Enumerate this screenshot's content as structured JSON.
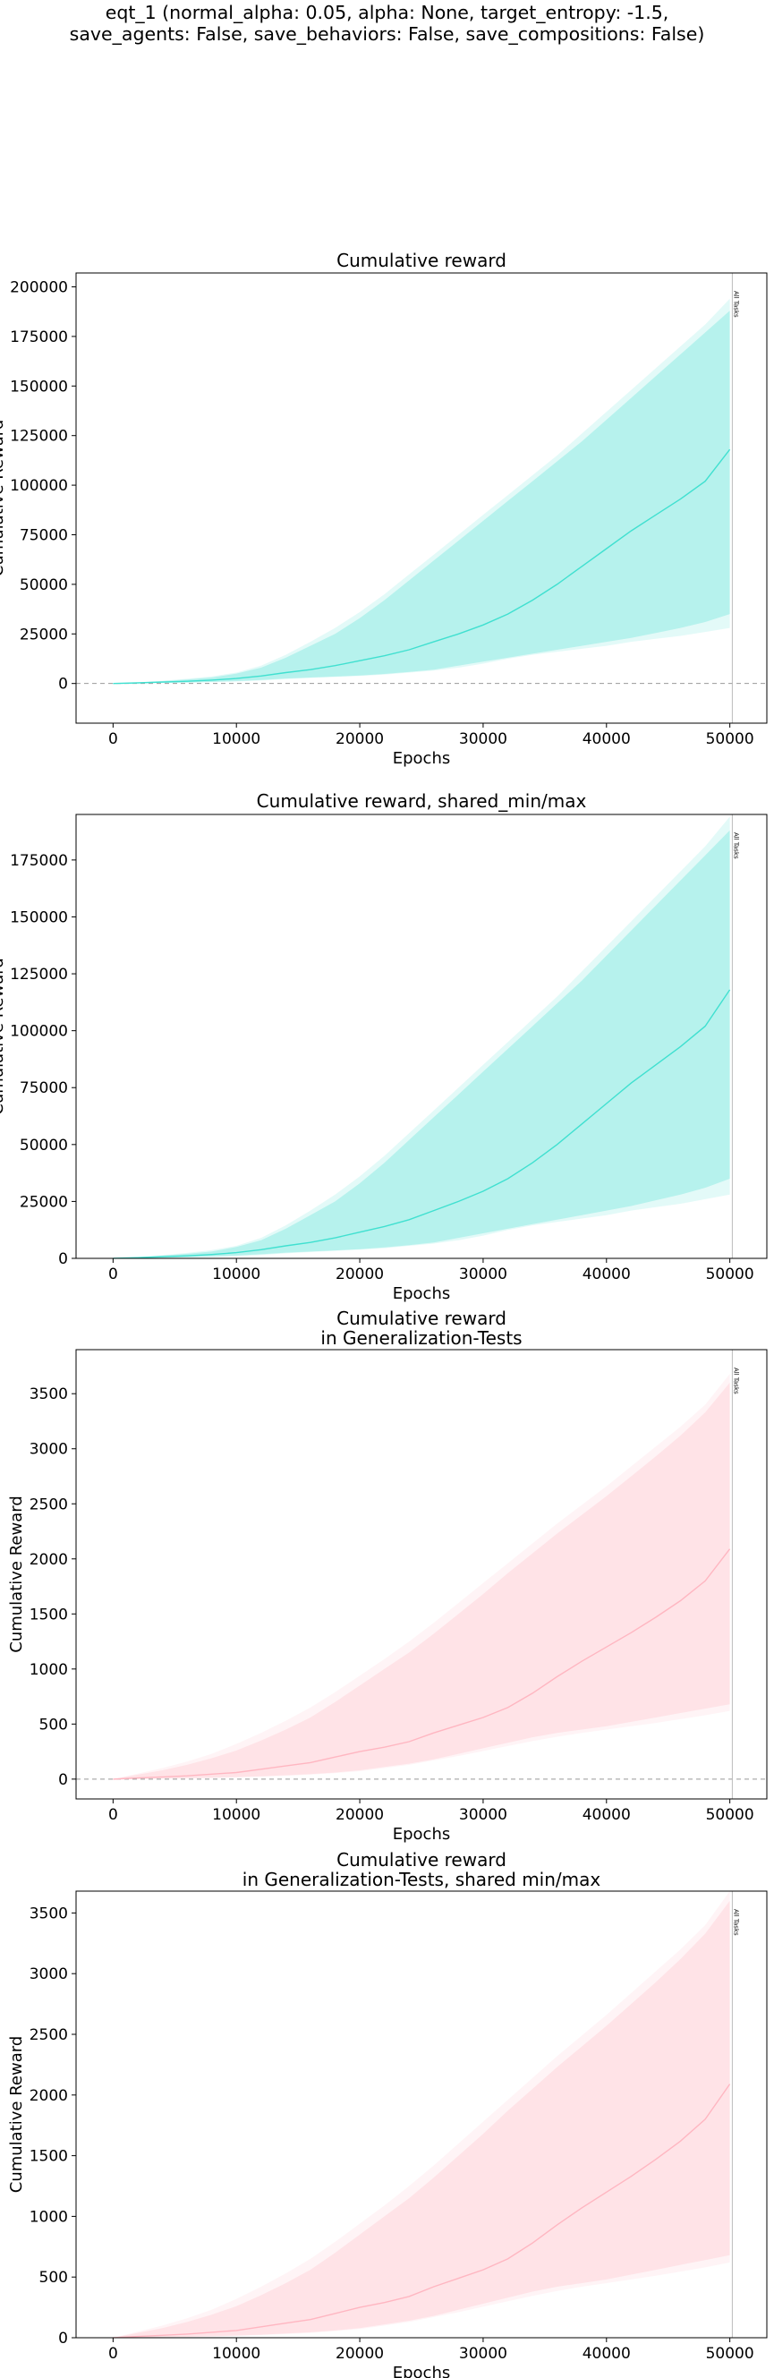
{
  "suptitle": {
    "line1": "eqt_1 (normal_alpha: 0.05, alpha: None, target_entropy: -1.5,",
    "line2": "save_agents: False, save_behaviors: False, save_compositions: False)"
  },
  "chart_data": [
    {
      "type": "area",
      "title_lines": [
        "Cumulative reward"
      ],
      "xlabel": "Epochs",
      "ylabel": "Cumulative Reward",
      "xlim": [
        -3000,
        53000
      ],
      "ylim": [
        -20000,
        207000
      ],
      "xticks": [
        0,
        10000,
        20000,
        30000,
        40000,
        50000
      ],
      "yticks": [
        0,
        25000,
        50000,
        75000,
        100000,
        125000,
        150000,
        175000,
        200000
      ],
      "zero_line": true,
      "color": "#40e0d0",
      "vline": {
        "x": 50200,
        "label": "All Tasks"
      },
      "x": [
        0,
        2000,
        4000,
        6000,
        8000,
        10000,
        12000,
        14000,
        16000,
        18000,
        20000,
        22000,
        24000,
        26000,
        28000,
        30000,
        32000,
        34000,
        36000,
        38000,
        40000,
        42000,
        44000,
        46000,
        48000,
        50000
      ],
      "mean": [
        0,
        300,
        700,
        1100,
        1700,
        2500,
        3800,
        5500,
        7000,
        9000,
        11500,
        14000,
        17000,
        21000,
        25000,
        29500,
        35000,
        42000,
        50000,
        59000,
        68000,
        77000,
        85000,
        93000,
        102000,
        118000
      ],
      "inner_lower": [
        0,
        100,
        300,
        500,
        800,
        1200,
        1800,
        2500,
        3000,
        3500,
        4000,
        4800,
        5800,
        7000,
        9000,
        11000,
        13000,
        15000,
        17000,
        19000,
        21000,
        23000,
        25500,
        28000,
        31000,
        35000
      ],
      "inner_upper": [
        0,
        500,
        1200,
        2000,
        3000,
        5000,
        8000,
        13000,
        19000,
        25000,
        33000,
        42000,
        52000,
        62000,
        72000,
        82000,
        92000,
        102000,
        112000,
        122000,
        133000,
        144000,
        155000,
        166000,
        177000,
        188000
      ],
      "outer_lower": [
        0,
        100,
        250,
        400,
        700,
        1000,
        1500,
        2200,
        2800,
        3300,
        3800,
        4500,
        5500,
        6500,
        8000,
        10000,
        12500,
        14500,
        16000,
        17500,
        19000,
        21000,
        22500,
        24000,
        26000,
        28000
      ],
      "outer_upper": [
        0,
        600,
        1400,
        2400,
        3600,
        5500,
        9000,
        14500,
        21000,
        28000,
        36000,
        45000,
        55000,
        65000,
        75000,
        85000,
        95000,
        105000,
        115000,
        126000,
        137000,
        148000,
        159000,
        170000,
        181000,
        194000
      ]
    },
    {
      "type": "area",
      "title_lines": [
        "Cumulative reward, shared_min/max"
      ],
      "xlabel": "Epochs",
      "ylabel": "Cumulative Reward",
      "xlim": [
        -3000,
        53000
      ],
      "ylim": [
        0,
        195000
      ],
      "xticks": [
        0,
        10000,
        20000,
        30000,
        40000,
        50000
      ],
      "yticks": [
        0,
        25000,
        50000,
        75000,
        100000,
        125000,
        150000,
        175000
      ],
      "zero_line": false,
      "color": "#40e0d0",
      "vline": {
        "x": 50200,
        "label": "All Tasks"
      },
      "x": [
        0,
        2000,
        4000,
        6000,
        8000,
        10000,
        12000,
        14000,
        16000,
        18000,
        20000,
        22000,
        24000,
        26000,
        28000,
        30000,
        32000,
        34000,
        36000,
        38000,
        40000,
        42000,
        44000,
        46000,
        48000,
        50000
      ],
      "mean": [
        0,
        300,
        700,
        1100,
        1700,
        2500,
        3800,
        5500,
        7000,
        9000,
        11500,
        14000,
        17000,
        21000,
        25000,
        29500,
        35000,
        42000,
        50000,
        59000,
        68000,
        77000,
        85000,
        93000,
        102000,
        118000
      ],
      "inner_lower": [
        0,
        100,
        300,
        500,
        800,
        1200,
        1800,
        2500,
        3000,
        3500,
        4000,
        4800,
        5800,
        7000,
        9000,
        11000,
        13000,
        15000,
        17000,
        19000,
        21000,
        23000,
        25500,
        28000,
        31000,
        35000
      ],
      "inner_upper": [
        0,
        500,
        1200,
        2000,
        3000,
        5000,
        8000,
        13000,
        19000,
        25000,
        33000,
        42000,
        52000,
        62000,
        72000,
        82000,
        92000,
        102000,
        112000,
        122000,
        133000,
        144000,
        155000,
        166000,
        177000,
        188000
      ],
      "outer_lower": [
        0,
        100,
        250,
        400,
        700,
        1000,
        1500,
        2200,
        2800,
        3300,
        3800,
        4500,
        5500,
        6500,
        8000,
        10000,
        12500,
        14500,
        16000,
        17500,
        19000,
        21000,
        22500,
        24000,
        26000,
        28000
      ],
      "outer_upper": [
        0,
        600,
        1400,
        2400,
        3600,
        5500,
        9000,
        14500,
        21000,
        28000,
        36000,
        45000,
        55000,
        65000,
        75000,
        85000,
        95000,
        105000,
        115000,
        126000,
        137000,
        148000,
        159000,
        170000,
        181000,
        194000
      ]
    },
    {
      "type": "area",
      "title_lines": [
        "Cumulative reward",
        "in Generalization-Tests"
      ],
      "xlabel": "Epochs",
      "ylabel": "Cumulative Reward",
      "xlim": [
        -3000,
        53000
      ],
      "ylim": [
        -180,
        3900
      ],
      "xticks": [
        0,
        10000,
        20000,
        30000,
        40000,
        50000
      ],
      "yticks": [
        0,
        500,
        1000,
        1500,
        2000,
        2500,
        3000,
        3500
      ],
      "zero_line": true,
      "color": "#ffb6c1",
      "vline": {
        "x": 50200,
        "label": "All Tasks"
      },
      "x": [
        0,
        2000,
        4000,
        6000,
        8000,
        10000,
        12000,
        14000,
        16000,
        18000,
        20000,
        22000,
        24000,
        26000,
        28000,
        30000,
        32000,
        34000,
        36000,
        38000,
        40000,
        42000,
        44000,
        46000,
        48000,
        50000
      ],
      "mean": [
        0,
        10,
        20,
        30,
        45,
        60,
        90,
        120,
        150,
        200,
        250,
        290,
        340,
        420,
        490,
        560,
        650,
        780,
        930,
        1070,
        1200,
        1330,
        1470,
        1620,
        1800,
        2090
      ],
      "inner_lower": [
        0,
        2,
        5,
        8,
        12,
        18,
        25,
        35,
        45,
        60,
        80,
        110,
        140,
        180,
        230,
        280,
        330,
        380,
        420,
        450,
        480,
        520,
        560,
        600,
        640,
        680
      ],
      "inner_upper": [
        0,
        40,
        80,
        130,
        190,
        260,
        350,
        450,
        560,
        700,
        850,
        1000,
        1150,
        1320,
        1500,
        1680,
        1870,
        2050,
        2230,
        2400,
        2570,
        2750,
        2930,
        3120,
        3330,
        3600
      ],
      "outer_lower": [
        0,
        2,
        4,
        7,
        10,
        15,
        22,
        30,
        40,
        55,
        72,
        100,
        130,
        170,
        210,
        255,
        300,
        345,
        385,
        420,
        450,
        480,
        510,
        545,
        580,
        620
      ],
      "outer_upper": [
        0,
        50,
        100,
        160,
        230,
        320,
        420,
        530,
        650,
        790,
        940,
        1090,
        1250,
        1420,
        1600,
        1780,
        1960,
        2140,
        2320,
        2490,
        2660,
        2840,
        3020,
        3200,
        3400,
        3680
      ]
    },
    {
      "type": "area",
      "title_lines": [
        "Cumulative reward",
        "in Generalization-Tests, shared min/max"
      ],
      "xlabel": "Epochs",
      "ylabel": "Cumulative Reward",
      "xlim": [
        -3000,
        53000
      ],
      "ylim": [
        0,
        3680
      ],
      "xticks": [
        0,
        10000,
        20000,
        30000,
        40000,
        50000
      ],
      "yticks": [
        0,
        500,
        1000,
        1500,
        2000,
        2500,
        3000,
        3500
      ],
      "zero_line": false,
      "color": "#ffb6c1",
      "vline": {
        "x": 50200,
        "label": "All Tasks"
      },
      "x": [
        0,
        2000,
        4000,
        6000,
        8000,
        10000,
        12000,
        14000,
        16000,
        18000,
        20000,
        22000,
        24000,
        26000,
        28000,
        30000,
        32000,
        34000,
        36000,
        38000,
        40000,
        42000,
        44000,
        46000,
        48000,
        50000
      ],
      "mean": [
        0,
        10,
        20,
        30,
        45,
        60,
        90,
        120,
        150,
        200,
        250,
        290,
        340,
        420,
        490,
        560,
        650,
        780,
        930,
        1070,
        1200,
        1330,
        1470,
        1620,
        1800,
        2090
      ],
      "inner_lower": [
        0,
        2,
        5,
        8,
        12,
        18,
        25,
        35,
        45,
        60,
        80,
        110,
        140,
        180,
        230,
        280,
        330,
        380,
        420,
        450,
        480,
        520,
        560,
        600,
        640,
        680
      ],
      "inner_upper": [
        0,
        40,
        80,
        130,
        190,
        260,
        350,
        450,
        560,
        700,
        850,
        1000,
        1150,
        1320,
        1500,
        1680,
        1870,
        2050,
        2230,
        2400,
        2570,
        2750,
        2930,
        3120,
        3330,
        3600
      ],
      "outer_lower": [
        0,
        2,
        4,
        7,
        10,
        15,
        22,
        30,
        40,
        55,
        72,
        100,
        130,
        170,
        210,
        255,
        300,
        345,
        385,
        420,
        450,
        480,
        510,
        545,
        580,
        620
      ],
      "outer_upper": [
        0,
        50,
        100,
        160,
        230,
        320,
        420,
        530,
        650,
        790,
        940,
        1090,
        1250,
        1420,
        1600,
        1780,
        1960,
        2140,
        2320,
        2490,
        2660,
        2840,
        3020,
        3200,
        3400,
        3680
      ]
    }
  ]
}
